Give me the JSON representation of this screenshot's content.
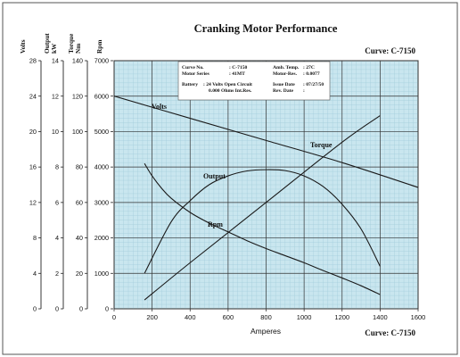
{
  "chart_data": {
    "type": "line",
    "title": "Cranking Motor Performance",
    "curve_label": "Curve: C-7150",
    "xlabel": "Amperes",
    "xlim": [
      0,
      1600
    ],
    "x_ticks": [
      0,
      200,
      400,
      600,
      800,
      1000,
      1200,
      1400,
      1600
    ],
    "axes": [
      {
        "id": "volts",
        "label": "Volts",
        "ylim": [
          0,
          28
        ],
        "ticks": [
          0,
          4,
          8,
          12,
          16,
          20,
          24,
          28
        ]
      },
      {
        "id": "output",
        "label": "Output kW",
        "ylim": [
          0,
          14
        ],
        "ticks": [
          0,
          2,
          4,
          6,
          8,
          10,
          12,
          14
        ]
      },
      {
        "id": "torque",
        "label": "Torque Nm",
        "ylim": [
          0,
          140
        ],
        "ticks": [
          0,
          20,
          40,
          60,
          80,
          100,
          120,
          140
        ]
      },
      {
        "id": "rpm",
        "label": "Rpm",
        "ylim": [
          0,
          7000
        ],
        "ticks": [
          0,
          1000,
          2000,
          3000,
          4000,
          5000,
          6000,
          7000
        ]
      }
    ],
    "series": [
      {
        "name": "Volts",
        "axis": "volts",
        "x": [
          0,
          400,
          800,
          1200,
          1600
        ],
        "y": [
          24,
          21.5,
          19,
          16.5,
          13.7
        ]
      },
      {
        "name": "Torque",
        "axis": "torque",
        "x": [
          160,
          400,
          800,
          1200,
          1400
        ],
        "y": [
          5,
          26,
          60,
          94,
          109
        ]
      },
      {
        "name": "Output",
        "axis": "output",
        "x": [
          160,
          300,
          400,
          500,
          600,
          700,
          800,
          900,
          1000,
          1100,
          1200,
          1300,
          1400
        ],
        "y": [
          2,
          4.9,
          6.1,
          7.0,
          7.5,
          7.78,
          7.85,
          7.8,
          7.5,
          6.9,
          5.9,
          4.5,
          2.4
        ]
      },
      {
        "name": "Rpm",
        "axis": "rpm",
        "x": [
          160,
          200,
          250,
          300,
          400,
          500,
          600,
          700,
          800,
          900,
          1000,
          1100,
          1200,
          1300,
          1400
        ],
        "y": [
          4100,
          3750,
          3400,
          3120,
          2720,
          2420,
          2170,
          1920,
          1700,
          1500,
          1300,
          1080,
          870,
          650,
          400
        ]
      }
    ],
    "grid": true,
    "info_box": {
      "rows": [
        {
          "k1": "Curve No.",
          "v1": ": C-7150",
          "k2": "Amb. Temp.",
          "v2": ": 27C"
        },
        {
          "k1": "Motor Series",
          "v1": ": 41MT",
          "k2": "Motor-Res.",
          "v2": ": 0.0077"
        },
        {
          "k1": "Battery",
          "v1": ": 24 Volts Open Circuit",
          "k2": "Issue Date",
          "v2": ": 07/27/50"
        },
        {
          "k1": "",
          "v1": "0.000 Ohms Int.Res.",
          "k2": "Rev. Date",
          "v2": ":"
        }
      ]
    }
  }
}
